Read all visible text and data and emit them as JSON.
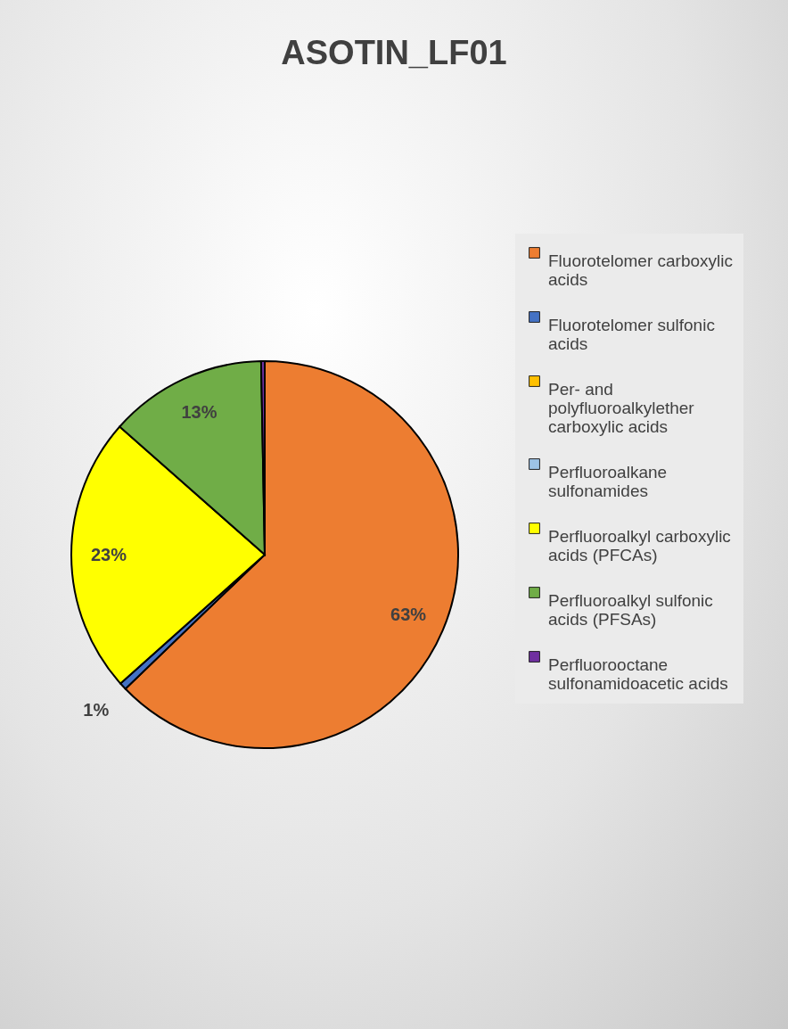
{
  "chart_data": {
    "type": "pie",
    "title": "ASOTIN_LF01",
    "categories": [
      "Fluorotelomer carboxylic acids",
      "Fluorotelomer sulfonic acids",
      "Per- and polyfluoroalkylether carboxylic acids",
      "Perfluoroalkane sulfonamides",
      "Perfluoroalkyl carboxylic acids (PFCAs)",
      "Perfluoroalkyl sulfonic acids (PFSAs)",
      "Perfluorooctane sulfonamidoacetic acids"
    ],
    "values": [
      62.8,
      0.6,
      0,
      0,
      23.1,
      13.2,
      0.3
    ],
    "colors": [
      "#ed7d31",
      "#4472c4",
      "#ffc000",
      "#9dc3e6",
      "#ffff00",
      "#70ad47",
      "#7030a0"
    ],
    "value_labels": [
      "63%",
      "1%",
      null,
      null,
      "23%",
      "13%",
      null
    ],
    "legend": "right"
  }
}
